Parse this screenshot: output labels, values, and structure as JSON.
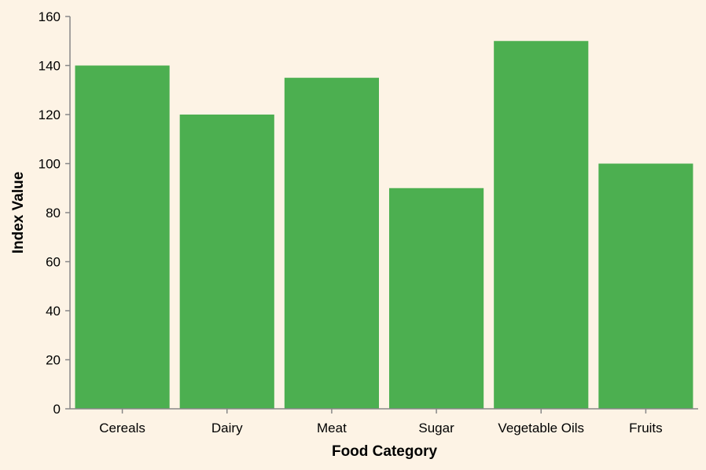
{
  "chart_data": {
    "type": "bar",
    "title": "",
    "xlabel": "Food Category",
    "ylabel": "Index Value",
    "categories": [
      "Cereals",
      "Dairy",
      "Meat",
      "Sugar",
      "Vegetable Oils",
      "Fruits"
    ],
    "values": [
      140,
      120,
      135,
      90,
      150,
      100
    ],
    "ylim": [
      0,
      160
    ],
    "yticks": [
      "0",
      "20",
      "40",
      "60",
      "80",
      "100",
      "120",
      "140",
      "160"
    ],
    "grid": false,
    "legend": "none",
    "colors": {
      "background": "#fdf3e5",
      "bar": "#4caf50",
      "axis": "#888888",
      "text": "#000000"
    }
  }
}
